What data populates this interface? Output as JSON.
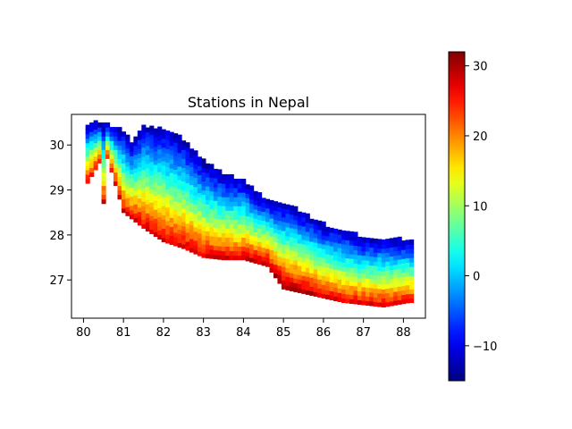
{
  "chart_data": {
    "type": "heatmap",
    "title": "Stations in Nepal",
    "xlabel": "",
    "ylabel": "",
    "xlim": [
      79.7,
      88.55
    ],
    "ylim": [
      26.15,
      30.68
    ],
    "x_ticks": [
      80,
      81,
      82,
      83,
      84,
      85,
      86,
      87,
      88
    ],
    "y_ticks": [
      27,
      28,
      29,
      30
    ],
    "colorbar": {
      "colormap": "jet",
      "range": [
        -15,
        32
      ],
      "ticks": [
        -10,
        0,
        10,
        20,
        30
      ]
    },
    "grid": false,
    "boundary": {
      "north": [
        [
          80.55,
          30.45
        ],
        [
          81.0,
          30.3
        ],
        [
          81.2,
          30.0
        ],
        [
          81.5,
          30.4
        ],
        [
          82.0,
          30.35
        ],
        [
          82.5,
          30.1
        ],
        [
          83.0,
          29.6
        ],
        [
          83.5,
          29.3
        ],
        [
          84.0,
          29.2
        ],
        [
          84.3,
          28.9
        ],
        [
          84.8,
          28.7
        ],
        [
          85.2,
          28.6
        ],
        [
          85.5,
          28.45
        ],
        [
          86.0,
          28.2
        ],
        [
          86.5,
          28.1
        ],
        [
          87.0,
          27.9
        ],
        [
          87.5,
          27.9
        ],
        [
          88.1,
          27.85
        ]
      ],
      "south": [
        [
          88.15,
          26.5
        ],
        [
          87.5,
          26.4
        ],
        [
          87.0,
          26.45
        ],
        [
          86.5,
          26.5
        ],
        [
          86.0,
          26.6
        ],
        [
          85.5,
          26.7
        ],
        [
          85.0,
          26.8
        ],
        [
          84.6,
          27.3
        ],
        [
          84.0,
          27.45
        ],
        [
          83.5,
          27.45
        ],
        [
          83.0,
          27.5
        ],
        [
          82.5,
          27.7
        ],
        [
          82.0,
          27.85
        ],
        [
          81.5,
          28.15
        ],
        [
          81.0,
          28.5
        ],
        [
          80.5,
          28.7
        ],
        [
          80.05,
          28.85
        ],
        [
          80.1,
          29.15
        ],
        [
          80.4,
          29.6
        ],
        [
          80.5,
          30.0
        ]
      ]
    },
    "value_model": {
      "pattern": "temperature decreases from the southern boundary (about 29-31) to the northern boundary (about -12), warmest near 84.9 E 27.0 N",
      "south_value": 29,
      "north_value": -12,
      "hotspot": [
        84.9,
        27.05,
        32
      ]
    }
  }
}
